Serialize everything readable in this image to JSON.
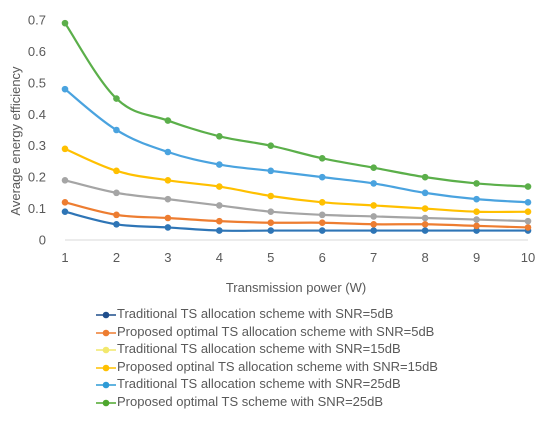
{
  "chart_data": {
    "type": "line",
    "xlabel": "Transmission power (W)",
    "ylabel": "Average energy efficiency",
    "x": [
      1,
      2,
      3,
      4,
      5,
      6,
      7,
      8,
      9,
      10
    ],
    "xlim": [
      1,
      10
    ],
    "ylim": [
      0,
      0.7
    ],
    "x_ticks": [
      "1",
      "2",
      "3",
      "4",
      "5",
      "6",
      "7",
      "8",
      "9",
      "10"
    ],
    "y_ticks": [
      "0",
      "0.1",
      "0.2",
      "0.3",
      "0.4",
      "0.5",
      "0.6",
      "0.7"
    ],
    "grid": false,
    "legend_position": "bottom",
    "series": [
      {
        "name": "Traditional TS allocation scheme with SNR=5dB",
        "color": "#2E75B6",
        "values": [
          0.09,
          0.05,
          0.04,
          0.03,
          0.03,
          0.03,
          0.03,
          0.03,
          0.03,
          0.03
        ]
      },
      {
        "name": "Proposed optimal TS allocation scheme with SNR=5dB",
        "color": "#ED7D31",
        "values": [
          0.12,
          0.08,
          0.07,
          0.06,
          0.055,
          0.055,
          0.05,
          0.05,
          0.045,
          0.04
        ]
      },
      {
        "name": "Traditional TS allocation scheme with SNR=15dB",
        "color": "#A5A5A5",
        "values": [
          0.19,
          0.15,
          0.13,
          0.11,
          0.09,
          0.08,
          0.075,
          0.07,
          0.065,
          0.06
        ]
      },
      {
        "name": "Proposed optinal TS allocation scheme with SNR=15dB",
        "color": "#FFC000",
        "values": [
          0.29,
          0.22,
          0.19,
          0.17,
          0.14,
          0.12,
          0.11,
          0.1,
          0.09,
          0.09
        ]
      },
      {
        "name": "Traditional TS allocation scheme with SNR=25dB",
        "color": "#4AA3DF",
        "values": [
          0.48,
          0.35,
          0.28,
          0.24,
          0.22,
          0.2,
          0.18,
          0.15,
          0.13,
          0.12
        ]
      },
      {
        "name": "Proposed optimal TS scheme with SNR=25dB",
        "color": "#5BAF4A",
        "values": [
          0.69,
          0.45,
          0.38,
          0.33,
          0.3,
          0.26,
          0.23,
          0.2,
          0.18,
          0.17
        ]
      }
    ]
  },
  "legend_marker_colors": [
    "#1F4E8C",
    "#ED7D31",
    "#F2E86D",
    "#FFC000",
    "#2E9BD6",
    "#4EA72E"
  ]
}
